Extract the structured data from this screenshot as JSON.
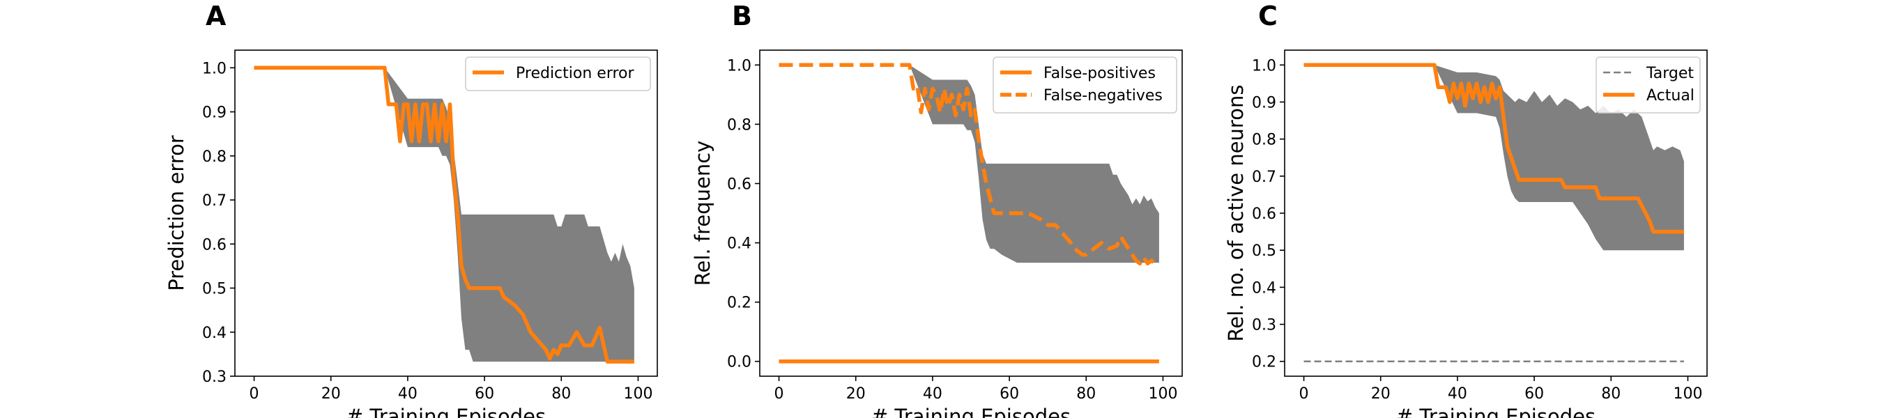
{
  "colors": {
    "orange": "#ff7f0e",
    "gray_band": "#808080",
    "target": "#7f7f7f"
  },
  "chart_data": [
    {
      "type": "line",
      "panel_label": "A",
      "xlabel": "# Training Episodes",
      "ylabel": "Prediction error",
      "xlim": [
        -5,
        105
      ],
      "ylim": [
        0.3,
        1.04
      ],
      "xticks": [
        0,
        20,
        40,
        60,
        80,
        100
      ],
      "xtick_labels": [
        "0",
        "20",
        "40",
        "60",
        "80",
        "100"
      ],
      "yticks": [
        0.3,
        0.4,
        0.5,
        0.6,
        0.7,
        0.8,
        0.9,
        1.0
      ],
      "ytick_labels": [
        "0.3",
        "0.4",
        "0.5",
        "0.6",
        "0.7",
        "0.8",
        "0.9",
        "1.0"
      ],
      "legend_position": "top-right",
      "series": [
        {
          "name": "Prediction error",
          "style": "solid",
          "x": [
            0,
            34,
            35,
            37,
            38,
            39,
            40,
            41,
            42,
            43,
            44,
            45,
            46,
            47,
            48,
            49,
            50,
            51,
            52,
            53,
            54,
            55,
            56,
            57,
            60,
            64,
            65,
            68,
            70,
            71,
            72,
            74,
            75,
            76,
            77,
            78,
            79,
            80,
            82,
            83,
            84,
            86,
            88,
            90,
            92,
            99
          ],
          "y": [
            1.0,
            1.0,
            0.917,
            0.917,
            0.833,
            0.917,
            0.917,
            0.833,
            0.917,
            0.833,
            0.917,
            0.917,
            0.833,
            0.917,
            0.833,
            0.917,
            0.833,
            0.917,
            0.75,
            0.667,
            0.55,
            0.52,
            0.5,
            0.5,
            0.5,
            0.5,
            0.48,
            0.46,
            0.44,
            0.42,
            0.4,
            0.38,
            0.37,
            0.36,
            0.34,
            0.36,
            0.35,
            0.37,
            0.37,
            0.385,
            0.4,
            0.37,
            0.37,
            0.41,
            0.333,
            0.333
          ]
        }
      ],
      "band": {
        "x": [
          0,
          34,
          40,
          45,
          48,
          49,
          50,
          51,
          52,
          53,
          54,
          55,
          56,
          57,
          58,
          63,
          66,
          70,
          73,
          78,
          79,
          80,
          81,
          82,
          86,
          87,
          88,
          90,
          92,
          93,
          94,
          95,
          96,
          97,
          98,
          99
        ],
        "upper": [
          1.0,
          1.0,
          0.93,
          0.93,
          0.93,
          0.93,
          0.91,
          0.88,
          0.81,
          0.74,
          0.667,
          0.667,
          0.667,
          0.667,
          0.667,
          0.667,
          0.667,
          0.667,
          0.667,
          0.667,
          0.64,
          0.64,
          0.667,
          0.667,
          0.667,
          0.64,
          0.64,
          0.64,
          0.58,
          0.56,
          0.58,
          0.56,
          0.6,
          0.57,
          0.55,
          0.5
        ],
        "lower": [
          1.0,
          1.0,
          0.82,
          0.82,
          0.82,
          0.8,
          0.8,
          0.78,
          0.7,
          0.58,
          0.43,
          0.36,
          0.36,
          0.333,
          0.333,
          0.333,
          0.333,
          0.333,
          0.333,
          0.333,
          0.333,
          0.333,
          0.333,
          0.333,
          0.333,
          0.333,
          0.333,
          0.333,
          0.333,
          0.333,
          0.333,
          0.333,
          0.333,
          0.333,
          0.333,
          0.333
        ]
      }
    },
    {
      "type": "line",
      "panel_label": "B",
      "xlabel": "# Training Episodes",
      "ylabel": "Rel. frequency",
      "xlim": [
        -5,
        105
      ],
      "ylim": [
        -0.05,
        1.05
      ],
      "xticks": [
        0,
        20,
        40,
        60,
        80,
        100
      ],
      "xtick_labels": [
        "0",
        "20",
        "40",
        "60",
        "80",
        "100"
      ],
      "yticks": [
        0.0,
        0.2,
        0.4,
        0.6,
        0.8,
        1.0
      ],
      "ytick_labels": [
        "0.0",
        "0.2",
        "0.4",
        "0.6",
        "0.8",
        "1.0"
      ],
      "legend_position": "top-right",
      "series": [
        {
          "name": "False-positives",
          "style": "solid",
          "x": [
            0,
            99
          ],
          "y": [
            0.0,
            0.0
          ]
        },
        {
          "name": "False-negatives",
          "style": "dashed",
          "x": [
            0,
            34,
            35,
            36,
            37,
            38,
            39,
            40,
            41,
            42,
            43,
            44,
            45,
            46,
            47,
            48,
            49,
            50,
            51,
            52,
            53,
            54,
            55,
            56,
            58,
            60,
            65,
            68,
            70,
            72,
            74,
            76,
            77,
            78,
            79,
            80,
            82,
            84,
            86,
            88,
            89,
            90,
            91,
            92,
            93,
            94,
            95,
            96,
            97,
            98,
            99
          ],
          "y": [
            1.0,
            1.0,
            0.92,
            0.93,
            0.84,
            0.92,
            0.85,
            0.92,
            0.9,
            0.84,
            0.92,
            0.86,
            0.9,
            0.83,
            0.9,
            0.85,
            0.92,
            0.83,
            0.85,
            0.75,
            0.67,
            0.6,
            0.55,
            0.5,
            0.5,
            0.5,
            0.5,
            0.48,
            0.46,
            0.46,
            0.43,
            0.4,
            0.38,
            0.37,
            0.36,
            0.36,
            0.38,
            0.4,
            0.38,
            0.39,
            0.42,
            0.4,
            0.38,
            0.36,
            0.34,
            0.33,
            0.35,
            0.33,
            0.34,
            0.33,
            0.33
          ]
        }
      ],
      "band": {
        "x": [
          0,
          34,
          40,
          45,
          48,
          49,
          50,
          51,
          52,
          53,
          54,
          55,
          56,
          58,
          62,
          70,
          78,
          84,
          86,
          87,
          88,
          89,
          90,
          91,
          92,
          93,
          94,
          95,
          96,
          97,
          98,
          99
        ],
        "upper": [
          1.0,
          1.0,
          0.95,
          0.95,
          0.95,
          0.95,
          0.93,
          0.9,
          0.8,
          0.7,
          0.667,
          0.667,
          0.667,
          0.667,
          0.667,
          0.667,
          0.667,
          0.667,
          0.667,
          0.63,
          0.63,
          0.6,
          0.58,
          0.56,
          0.53,
          0.55,
          0.53,
          0.56,
          0.54,
          0.55,
          0.52,
          0.5
        ],
        "lower": [
          1.0,
          1.0,
          0.8,
          0.8,
          0.8,
          0.78,
          0.78,
          0.74,
          0.62,
          0.48,
          0.41,
          0.38,
          0.38,
          0.36,
          0.333,
          0.333,
          0.333,
          0.333,
          0.333,
          0.333,
          0.333,
          0.333,
          0.333,
          0.333,
          0.333,
          0.333,
          0.333,
          0.333,
          0.333,
          0.333,
          0.333,
          0.333
        ]
      }
    },
    {
      "type": "line",
      "panel_label": "C",
      "xlabel": "# Training Episodes",
      "ylabel": "Rel. no. of active neurons",
      "xlim": [
        -5,
        105
      ],
      "ylim": [
        0.16,
        1.04
      ],
      "xticks": [
        0,
        20,
        40,
        60,
        80,
        100
      ],
      "xtick_labels": [
        "0",
        "20",
        "40",
        "60",
        "80",
        "100"
      ],
      "yticks": [
        0.2,
        0.3,
        0.4,
        0.5,
        0.6,
        0.7,
        0.8,
        0.9,
        1.0
      ],
      "ytick_labels": [
        "0.2",
        "0.3",
        "0.4",
        "0.5",
        "0.6",
        "0.7",
        "0.8",
        "0.9",
        "1.0"
      ],
      "legend_position": "top-right",
      "series": [
        {
          "name": "Target",
          "style": "thin-dashed",
          "x": [
            0,
            99
          ],
          "y": [
            0.2,
            0.2
          ]
        },
        {
          "name": "Actual",
          "style": "solid",
          "x": [
            0,
            34,
            35,
            37,
            38,
            39,
            40,
            41,
            42,
            43,
            44,
            45,
            46,
            47,
            48,
            49,
            50,
            51,
            52,
            53,
            54,
            55,
            56,
            57,
            58,
            67,
            68,
            76,
            77,
            87,
            88,
            89,
            90,
            91,
            94,
            99
          ],
          "y": [
            1.0,
            1.0,
            0.94,
            0.94,
            0.9,
            0.95,
            0.91,
            0.95,
            0.89,
            0.95,
            0.91,
            0.95,
            0.9,
            0.94,
            0.9,
            0.95,
            0.91,
            0.94,
            0.86,
            0.78,
            0.75,
            0.72,
            0.69,
            0.69,
            0.69,
            0.69,
            0.67,
            0.67,
            0.64,
            0.64,
            0.62,
            0.6,
            0.58,
            0.55,
            0.55,
            0.55
          ]
        }
      ],
      "band": {
        "x": [
          0,
          34,
          40,
          45,
          50,
          51,
          52,
          53,
          54,
          55,
          56,
          58,
          60,
          62,
          64,
          66,
          68,
          70,
          72,
          74,
          76,
          78,
          80,
          82,
          84,
          86,
          88,
          90,
          91,
          92,
          94,
          96,
          98,
          99
        ],
        "upper": [
          1.0,
          1.0,
          0.98,
          0.98,
          0.97,
          0.96,
          0.93,
          0.92,
          0.91,
          0.9,
          0.91,
          0.9,
          0.93,
          0.9,
          0.92,
          0.89,
          0.91,
          0.9,
          0.88,
          0.89,
          0.87,
          0.89,
          0.87,
          0.88,
          0.86,
          0.88,
          0.86,
          0.8,
          0.77,
          0.78,
          0.77,
          0.78,
          0.77,
          0.74
        ],
        "lower": [
          1.0,
          1.0,
          0.87,
          0.87,
          0.86,
          0.83,
          0.76,
          0.7,
          0.66,
          0.64,
          0.63,
          0.63,
          0.63,
          0.63,
          0.63,
          0.63,
          0.63,
          0.63,
          0.6,
          0.57,
          0.53,
          0.5,
          0.5,
          0.5,
          0.5,
          0.5,
          0.5,
          0.5,
          0.5,
          0.5,
          0.5,
          0.5,
          0.5,
          0.5
        ]
      }
    }
  ]
}
